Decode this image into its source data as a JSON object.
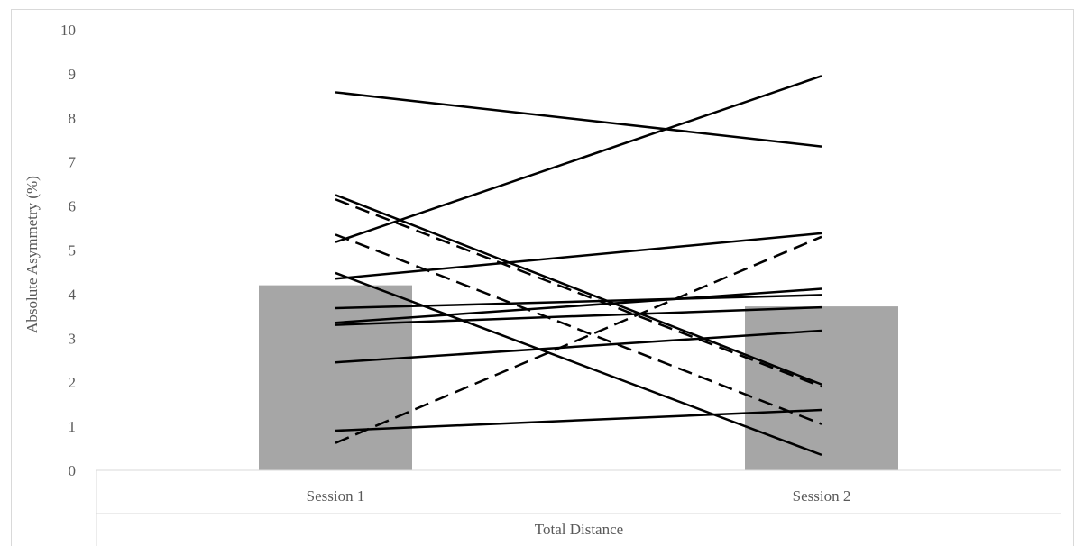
{
  "chart_data": {
    "type": "bar",
    "categories": [
      "Session 1",
      "Session 2"
    ],
    "xlabel": "Total Distance",
    "ylabel": "Absolute Asymmetry (%)",
    "ylim": [
      0,
      10
    ],
    "yticks": [
      "0",
      "1",
      "2",
      "3",
      "4",
      "5",
      "6",
      "7",
      "8",
      "9",
      "10"
    ],
    "bars": {
      "color": "#a6a6a6",
      "values": [
        4.2,
        3.72
      ]
    },
    "grid": false,
    "lines": [
      {
        "values": [
          8.58,
          7.35
        ],
        "style": "solid"
      },
      {
        "values": [
          5.18,
          8.95
        ],
        "style": "solid"
      },
      {
        "values": [
          6.25,
          1.95
        ],
        "style": "solid"
      },
      {
        "values": [
          6.15,
          1.9
        ],
        "style": "dashed"
      },
      {
        "values": [
          5.35,
          1.05
        ],
        "style": "dashed"
      },
      {
        "values": [
          4.35,
          5.38
        ],
        "style": "solid"
      },
      {
        "values": [
          4.48,
          0.35
        ],
        "style": "solid"
      },
      {
        "values": [
          3.68,
          3.98
        ],
        "style": "solid"
      },
      {
        "values": [
          3.35,
          4.12
        ],
        "style": "solid"
      },
      {
        "values": [
          3.3,
          3.7
        ],
        "style": "solid"
      },
      {
        "values": [
          2.45,
          3.17
        ],
        "style": "solid"
      },
      {
        "values": [
          0.9,
          1.37
        ],
        "style": "solid"
      },
      {
        "values": [
          0.62,
          5.3
        ],
        "style": "dashed"
      }
    ],
    "line_color": "#000000"
  }
}
